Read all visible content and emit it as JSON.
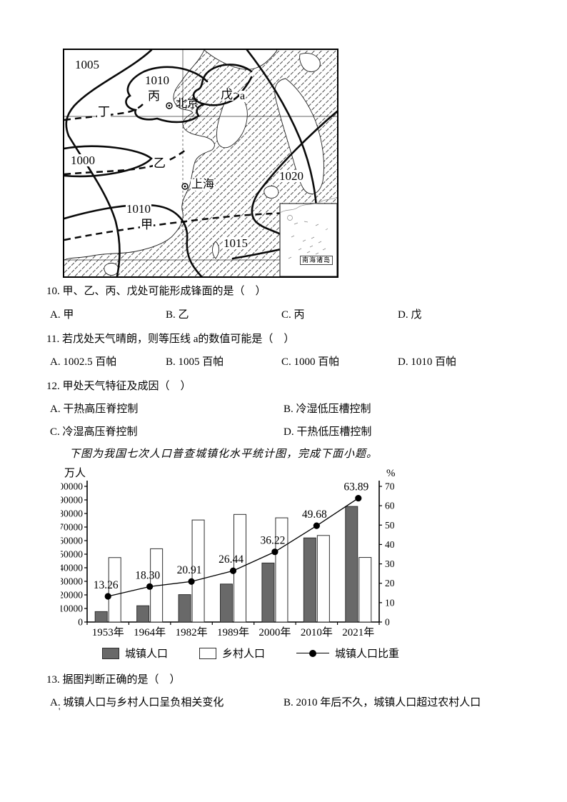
{
  "page": {
    "background": "#ffffff",
    "ink": "#000000",
    "stray_mark": "'"
  },
  "map": {
    "labels": {
      "iso_1005": "1005",
      "iso_1010_north": "1010",
      "bing": "丙",
      "beijing": "北京",
      "wu": "戊",
      "a": "a",
      "ding": "丁",
      "iso_1000": "1000",
      "yi": "乙",
      "shanghai": "上海",
      "iso_1010_south": "1010",
      "jia": "甲",
      "iso_1015": "1015",
      "iso_1020": "1020",
      "inset_caption": "南海诸岛"
    }
  },
  "questions": {
    "q10": {
      "stem": "10. 甲、乙、丙、戊处可能形成锋面的是（　）",
      "options": [
        "A. 甲",
        "B. 乙",
        "C. 丙",
        "D. 戊"
      ]
    },
    "q11": {
      "stem": "11. 若戊处天气晴朗，则等压线 a的数值可能是（　）",
      "options": [
        "A. 1002.5 百帕",
        "B. 1005 百帕",
        "C. 1000 百帕",
        "D. 1010 百帕"
      ]
    },
    "q12": {
      "stem": "12. 甲处天气特征及成因（　）",
      "options": [
        "A. 干热高压脊控制",
        "B. 冷湿低压槽控制",
        "C. 冷湿高压脊控制",
        "D. 干热低压槽控制"
      ]
    },
    "q13": {
      "stem": "13. 据图判断正确的是（　）",
      "options": [
        "A. 城镇人口与乡村人口呈负相关变化",
        "B. 2010 年后不久，城镇人口超过农村人口"
      ]
    }
  },
  "intro": "下图为我国七次人口普查城镇化水平统计图，完成下面小题。",
  "chart_data": {
    "type": "bar",
    "title": "我国七次人口普查城镇化水平统计图",
    "categories": [
      "1953年",
      "1964年",
      "1982年",
      "1989年",
      "2000年",
      "2010年",
      "2021年"
    ],
    "series": [
      {
        "name": "城镇人口",
        "type": "bar",
        "axis": "left",
        "fill": "#696969",
        "values": [
          7700,
          12000,
          20200,
          28000,
          43500,
          62000,
          85200
        ]
      },
      {
        "name": "乡村人口",
        "type": "bar",
        "axis": "left",
        "fill": "#ffffff",
        "values": [
          47500,
          54000,
          75200,
          79300,
          76800,
          63800,
          47600
        ]
      },
      {
        "name": "城镇人口比重",
        "type": "line",
        "axis": "right",
        "color": "#000000",
        "values": [
          13.26,
          18.3,
          20.91,
          26.44,
          36.22,
          49.68,
          63.89
        ]
      }
    ],
    "point_labels": [
      "13.26",
      "18.30",
      "20.91",
      "26.44",
      "36.22",
      "49.68",
      "63.89"
    ],
    "left_axis": {
      "title": "万人",
      "min": 0,
      "max": 100000,
      "step": 10000
    },
    "right_axis": {
      "title": "%",
      "min": 0,
      "max": 70,
      "step": 10
    },
    "grid": false,
    "legend_position": "bottom"
  }
}
